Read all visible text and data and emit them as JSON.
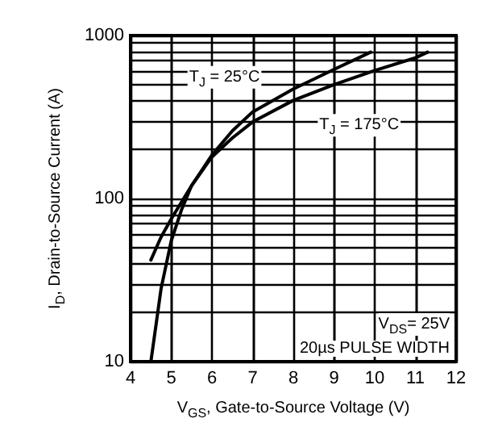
{
  "chart_data": {
    "type": "line",
    "xlabel": "V$_{GS}$, Gate-to-Source Voltage (V)",
    "ylabel": "I$_{D}$, Drain-to-Source Current (A)",
    "series": [
      {
        "name": "T$_{J}$ = 25°C",
        "color": "#000000",
        "x": [
          4.5,
          4.75,
          5,
          5.25,
          5.5,
          6,
          6.5,
          7,
          8,
          9,
          9.9
        ],
        "values": [
          10,
          28,
          55,
          85,
          120,
          185,
          260,
          340,
          470,
          620,
          790
        ]
      },
      {
        "name": "T$_{J}$ = 175°C",
        "color": "#000000",
        "x": [
          4.5,
          4.75,
          5,
          5.5,
          6,
          6.5,
          7,
          8,
          9,
          10,
          11,
          11.3
        ],
        "values": [
          42,
          58,
          75,
          120,
          180,
          235,
          295,
          400,
          500,
          610,
          730,
          790
        ]
      }
    ],
    "annotations": [
      "V$_{DS}$= 25V",
      "20µs PULSE WIDTH"
    ],
    "xlim": [
      4,
      12
    ],
    "xticks": [
      4,
      5,
      6,
      7,
      8,
      9,
      10,
      11,
      12
    ],
    "ylim": [
      10,
      1000
    ],
    "yticks": [
      10,
      100,
      1000
    ],
    "log": "y",
    "grid": true,
    "marker": "none",
    "line_style": "solid"
  }
}
